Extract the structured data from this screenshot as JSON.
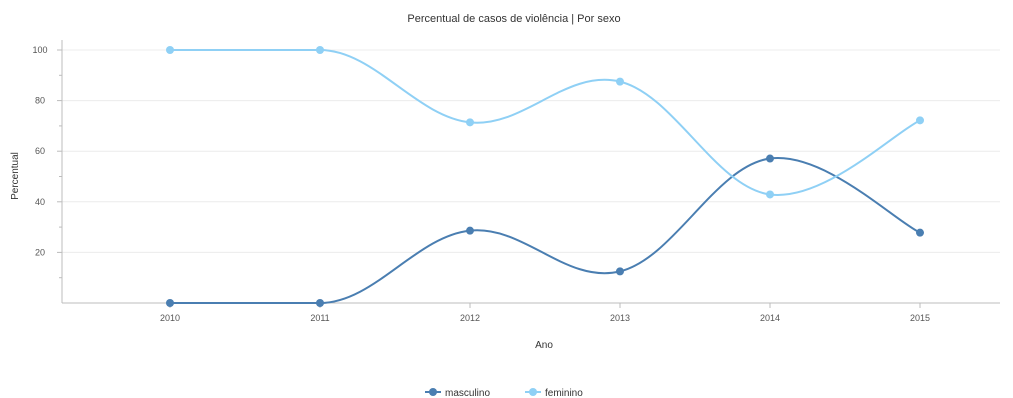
{
  "chart_data": {
    "type": "line",
    "title": "Percentual de casos de violência | Por sexo",
    "xlabel": "Ano",
    "ylabel": "Percentual",
    "categories": [
      "2010",
      "2011",
      "2012",
      "2013",
      "2014",
      "2015"
    ],
    "ylim": [
      0,
      100
    ],
    "yticks": [
      "20",
      "40",
      "60",
      "80",
      "100"
    ],
    "grid": true,
    "legend_position": "bottom-center",
    "series": [
      {
        "name": "masculino",
        "values": [
          0,
          0,
          28.6,
          12.5,
          57.1,
          27.8
        ],
        "color": "#4a7eb1"
      },
      {
        "name": "feminino",
        "values": [
          100,
          100,
          71.4,
          87.5,
          42.9,
          72.2
        ],
        "color": "#8fd0f5"
      }
    ]
  }
}
